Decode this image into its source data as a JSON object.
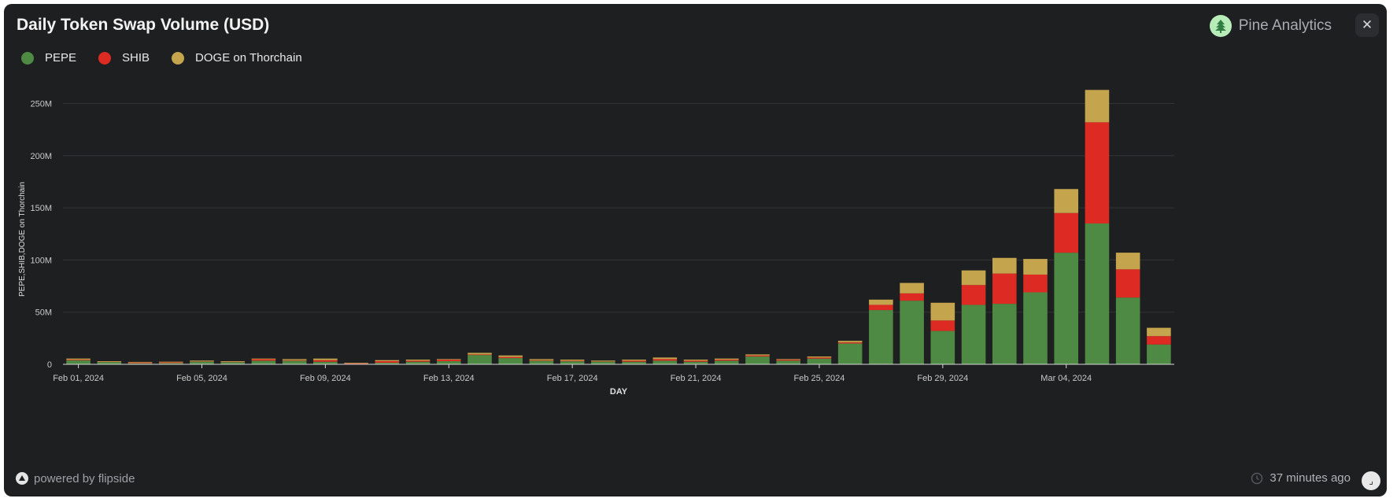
{
  "header": {
    "title": "Daily Token Swap Volume (USD)",
    "brand_name": "Pine Analytics",
    "brand_icon": "pine-tree-icon",
    "close_icon": "close-icon"
  },
  "footer": {
    "powered_by": "powered by flipside",
    "updated": "37 minutes ago"
  },
  "colors": {
    "background": "#1e1f21",
    "PEPE": "#4f8a44",
    "SHIB": "#dd2a22",
    "DOGE on Thorchain": "#c4a44c"
  },
  "chart_data": {
    "type": "bar",
    "stacked": true,
    "xlabel": "DAY",
    "ylabel": "PEPE,SHIB,DOGE on Thorchain",
    "ylim": [
      0,
      270000000
    ],
    "y_ticks": [
      0,
      50000000,
      100000000,
      150000000,
      200000000,
      250000000
    ],
    "y_tick_labels": [
      "0",
      "50M",
      "100M",
      "150M",
      "200M",
      "250M"
    ],
    "x_tick_labels": [
      {
        "index": 0,
        "label": "Feb 01, 2024"
      },
      {
        "index": 4,
        "label": "Feb 05, 2024"
      },
      {
        "index": 8,
        "label": "Feb 09, 2024"
      },
      {
        "index": 12,
        "label": "Feb 13, 2024"
      },
      {
        "index": 16,
        "label": "Feb 17, 2024"
      },
      {
        "index": 20,
        "label": "Feb 21, 2024"
      },
      {
        "index": 24,
        "label": "Feb 25, 2024"
      },
      {
        "index": 28,
        "label": "Feb 29, 2024"
      },
      {
        "index": 32,
        "label": "Mar 04, 2024"
      }
    ],
    "legend_position": "top-left",
    "grid": true,
    "categories": [
      "2024-02-01",
      "2024-02-02",
      "2024-02-03",
      "2024-02-04",
      "2024-02-05",
      "2024-02-06",
      "2024-02-07",
      "2024-02-08",
      "2024-02-09",
      "2024-02-10",
      "2024-02-11",
      "2024-02-12",
      "2024-02-13",
      "2024-02-14",
      "2024-02-15",
      "2024-02-16",
      "2024-02-17",
      "2024-02-18",
      "2024-02-19",
      "2024-02-20",
      "2024-02-21",
      "2024-02-22",
      "2024-02-23",
      "2024-02-24",
      "2024-02-25",
      "2024-02-26",
      "2024-02-27",
      "2024-02-28",
      "2024-02-29",
      "2024-03-01",
      "2024-03-02",
      "2024-03-03",
      "2024-03-04",
      "2024-03-05",
      "2024-03-06",
      "2024-03-07"
    ],
    "series": [
      {
        "name": "PEPE",
        "color": "#4f8a44",
        "values": [
          4000000,
          2500000,
          1000000,
          1200000,
          3000000,
          2500000,
          3500000,
          3500000,
          2500000,
          500000,
          1500000,
          2500000,
          3000000,
          9000000,
          6000000,
          3500000,
          3000000,
          3000000,
          2500000,
          3500000,
          2500000,
          3500000,
          7500000,
          3500000,
          5500000,
          20000000,
          52000000,
          61000000,
          32000000,
          57000000,
          58000000,
          69000000,
          107000000,
          135000000,
          64000000,
          19000000
        ]
      },
      {
        "name": "SHIB",
        "color": "#dd2a22",
        "values": [
          500000,
          300000,
          800000,
          1000000,
          300000,
          200000,
          1500000,
          500000,
          1500000,
          500000,
          1500000,
          1000000,
          1500000,
          500000,
          1000000,
          500000,
          500000,
          300000,
          1000000,
          1500000,
          1000000,
          1000000,
          1000000,
          1000000,
          1000000,
          1000000,
          5000000,
          7000000,
          10000000,
          19000000,
          29000000,
          17000000,
          38000000,
          97000000,
          27000000,
          8000000
        ]
      },
      {
        "name": "DOGE on Thorchain",
        "color": "#c4a44c",
        "values": [
          1000000,
          200000,
          500000,
          300000,
          300000,
          300000,
          500000,
          1000000,
          1500000,
          500000,
          1000000,
          1000000,
          500000,
          1500000,
          1500000,
          1000000,
          1000000,
          300000,
          1000000,
          1500000,
          1000000,
          1000000,
          1000000,
          500000,
          1000000,
          1500000,
          5000000,
          10000000,
          17000000,
          14000000,
          15000000,
          15000000,
          23000000,
          31000000,
          16000000,
          8000000
        ]
      }
    ]
  }
}
